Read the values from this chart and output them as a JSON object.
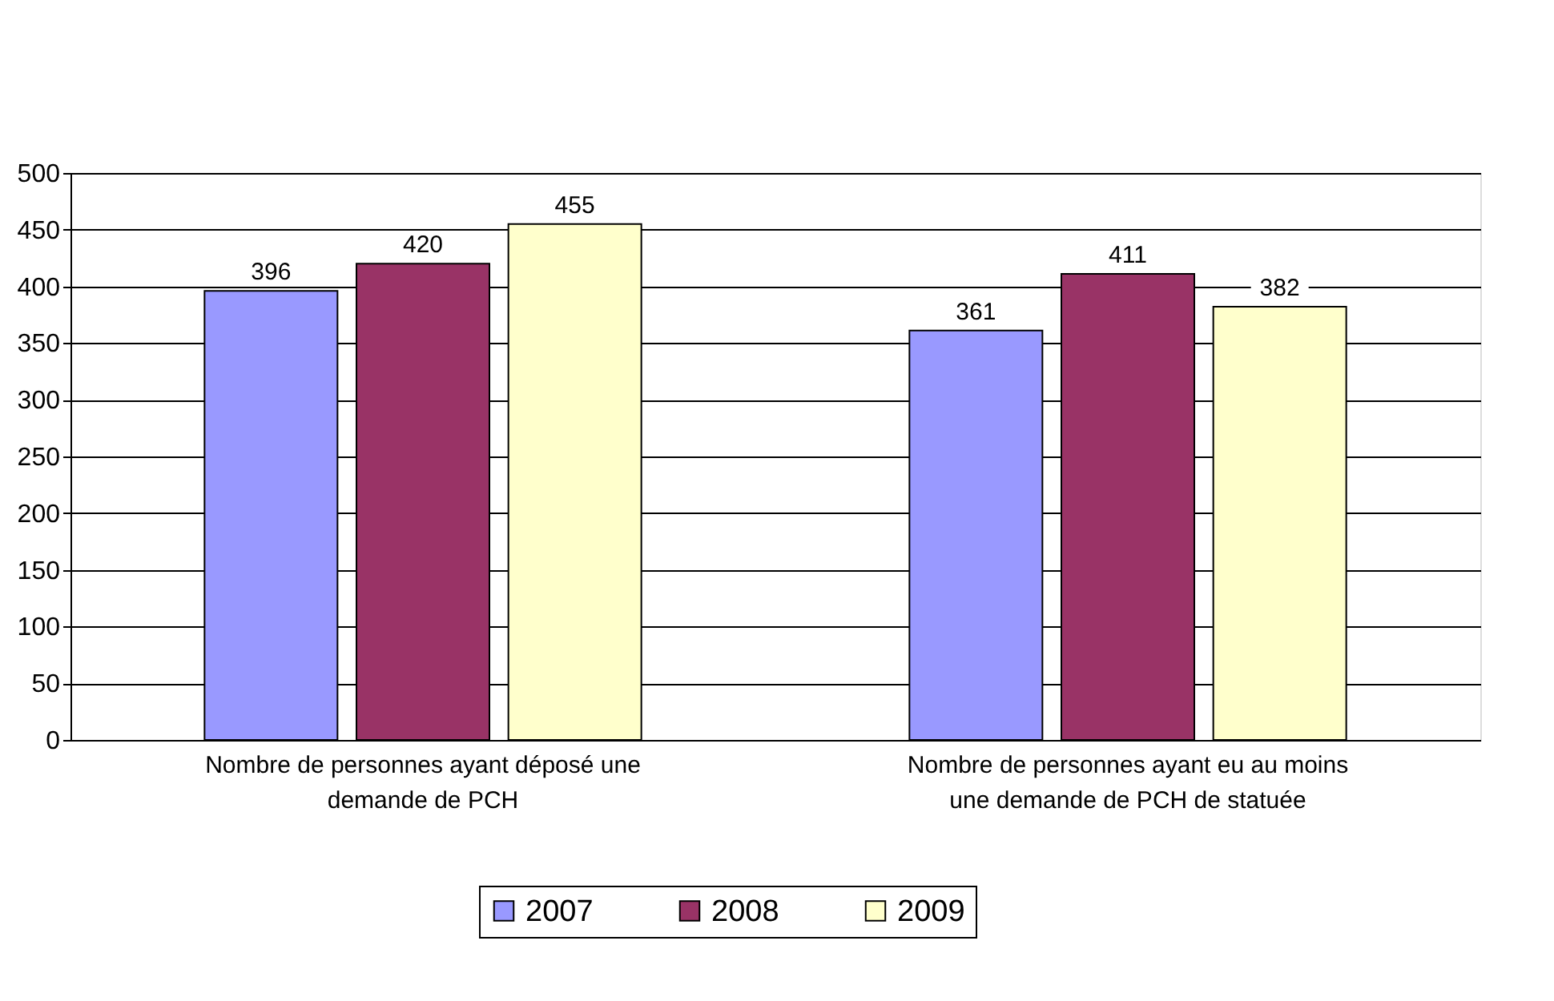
{
  "chart_data": {
    "type": "bar",
    "categories": [
      "Nombre de personnes ayant déposé une demande de PCH",
      "Nombre de personnes ayant eu au moins une demande de PCH de statuée"
    ],
    "series": [
      {
        "name": "2007",
        "color": "#9999ff",
        "values": [
          396,
          361
        ]
      },
      {
        "name": "2008",
        "color": "#993366",
        "values": [
          420,
          411
        ]
      },
      {
        "name": "2009",
        "color": "#ffffcc",
        "values": [
          455,
          382
        ]
      }
    ],
    "ylim": [
      0,
      500
    ],
    "yticks": [
      0,
      50,
      100,
      150,
      200,
      250,
      300,
      350,
      400,
      450,
      500
    ],
    "grid": "y",
    "legend": "bottom",
    "data_labels": true
  }
}
